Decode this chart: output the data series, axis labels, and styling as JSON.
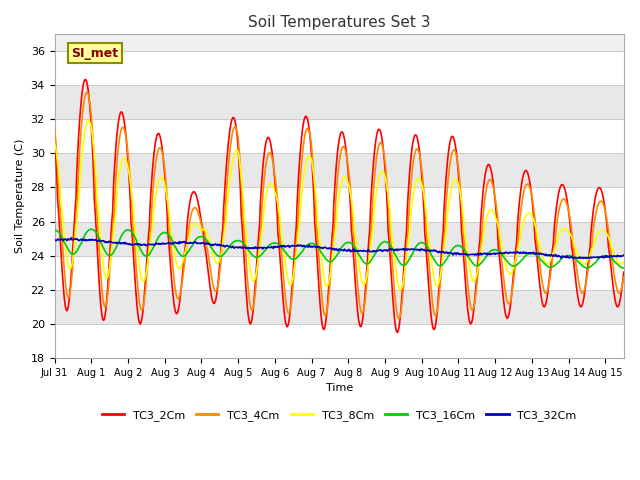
{
  "title": "Soil Temperatures Set 3",
  "xlabel": "Time",
  "ylabel": "Soil Temperature (C)",
  "ylim": [
    18,
    37
  ],
  "yticks": [
    18,
    20,
    22,
    24,
    26,
    28,
    30,
    32,
    34,
    36
  ],
  "start_day": 0,
  "end_day": 15.5,
  "xtick_labels": [
    "Jul 31",
    "Aug 1",
    "Aug 2",
    "Aug 3",
    "Aug 4",
    "Aug 5",
    "Aug 6",
    "Aug 7",
    "Aug 8",
    "Aug 9",
    "Aug 10",
    "Aug 11",
    "Aug 12",
    "Aug 13",
    "Aug 14",
    "Aug 15"
  ],
  "xtick_positions": [
    0,
    1,
    2,
    3,
    4,
    5,
    6,
    7,
    8,
    9,
    10,
    11,
    12,
    13,
    14,
    15
  ],
  "series_colors": {
    "TC3_2Cm": "#ff0000",
    "TC3_4Cm": "#ff8800",
    "TC3_8Cm": "#ffff00",
    "TC3_16Cm": "#00cc00",
    "TC3_32Cm": "#0000bb"
  },
  "annotation_text": "SI_met",
  "bg_color": "#f0f0f0",
  "legend_entries": [
    "TC3_2Cm",
    "TC3_4Cm",
    "TC3_8Cm",
    "TC3_16Cm",
    "TC3_32Cm"
  ],
  "grid_colors": [
    "#ffffff",
    "#e0e0e0"
  ]
}
